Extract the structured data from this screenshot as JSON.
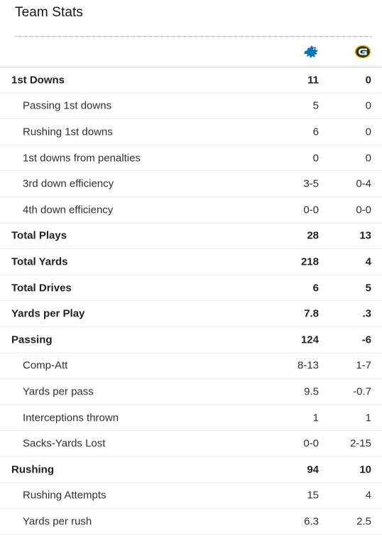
{
  "title": "Team Stats",
  "teams": {
    "away": {
      "icon": "lions-logo-icon",
      "color": "#0076b6"
    },
    "home": {
      "icon": "packers-logo-icon",
      "color": "#203731",
      "accent": "#ffb612"
    }
  },
  "rows": [
    {
      "label": "1st Downs",
      "v1": "11",
      "v2": "0",
      "bold": true
    },
    {
      "label": "Passing 1st downs",
      "v1": "5",
      "v2": "0",
      "bold": false
    },
    {
      "label": "Rushing 1st downs",
      "v1": "6",
      "v2": "0",
      "bold": false
    },
    {
      "label": "1st downs from penalties",
      "v1": "0",
      "v2": "0",
      "bold": false
    },
    {
      "label": "3rd down efficiency",
      "v1": "3-5",
      "v2": "0-4",
      "bold": false
    },
    {
      "label": "4th down efficiency",
      "v1": "0-0",
      "v2": "0-0",
      "bold": false
    },
    {
      "label": "Total Plays",
      "v1": "28",
      "v2": "13",
      "bold": true
    },
    {
      "label": "Total Yards",
      "v1": "218",
      "v2": "4",
      "bold": true
    },
    {
      "label": "Total Drives",
      "v1": "6",
      "v2": "5",
      "bold": true
    },
    {
      "label": "Yards per Play",
      "v1": "7.8",
      "v2": ".3",
      "bold": true
    },
    {
      "label": "Passing",
      "v1": "124",
      "v2": "-6",
      "bold": true
    },
    {
      "label": "Comp-Att",
      "v1": "8-13",
      "v2": "1-7",
      "bold": false
    },
    {
      "label": "Yards per pass",
      "v1": "9.5",
      "v2": "-0.7",
      "bold": false
    },
    {
      "label": "Interceptions thrown",
      "v1": "1",
      "v2": "1",
      "bold": false
    },
    {
      "label": "Sacks-Yards Lost",
      "v1": "0-0",
      "v2": "2-15",
      "bold": false
    },
    {
      "label": "Rushing",
      "v1": "94",
      "v2": "10",
      "bold": true
    },
    {
      "label": "Rushing Attempts",
      "v1": "15",
      "v2": "4",
      "bold": false
    },
    {
      "label": "Yards per rush",
      "v1": "6.3",
      "v2": "2.5",
      "bold": false
    }
  ]
}
